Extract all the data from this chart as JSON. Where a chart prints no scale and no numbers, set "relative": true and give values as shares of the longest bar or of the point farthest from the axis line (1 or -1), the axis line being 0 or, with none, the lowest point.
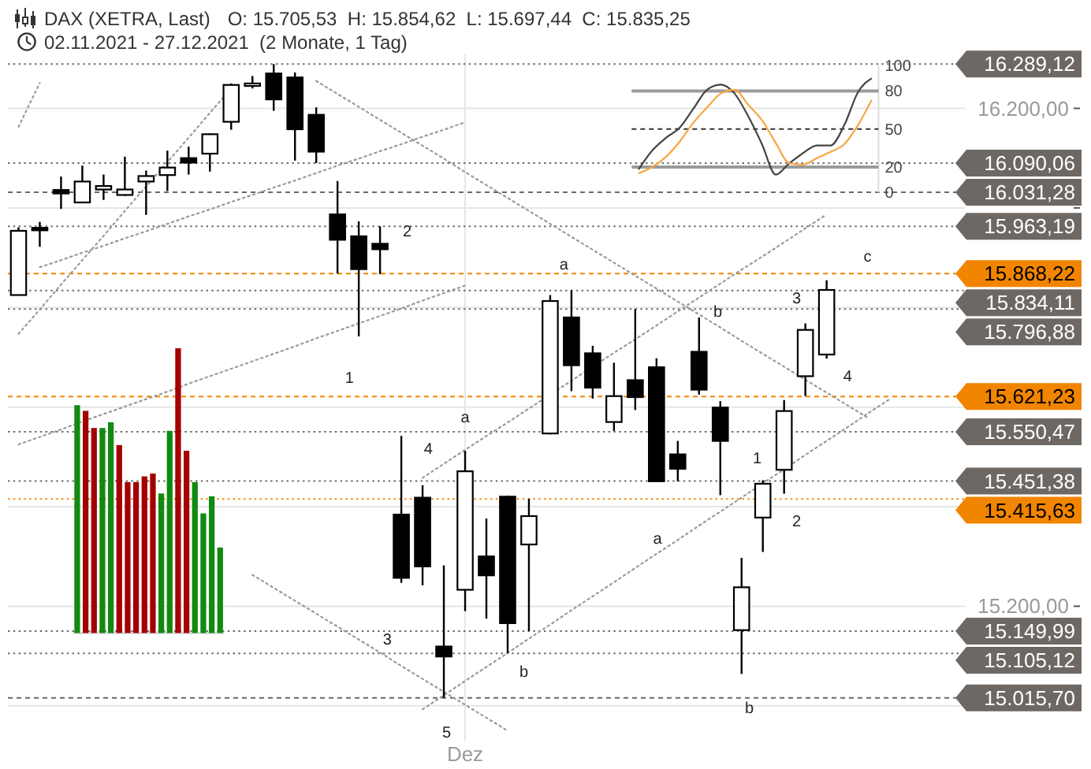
{
  "chart_data": [
    {
      "type": "candlestick",
      "title": "DAX (XETRA, Last)",
      "subtitle": "O: 15.705,53  H: 15.854,62  L: 15.697,44  C: 15.835,25",
      "annotations": [
        "02.11.2021 - 27.12.2021  (2 Monate, 1 Tag)",
        "1",
        "2",
        "3",
        "4",
        "5",
        "a",
        "b",
        "a",
        "b",
        "3",
        "c",
        "4",
        "1",
        "2",
        "a",
        "b"
      ],
      "categories": [
        null,
        null,
        null,
        null,
        null,
        null,
        null,
        null,
        null,
        null,
        null,
        null,
        null,
        null,
        null,
        null,
        null,
        null,
        null,
        null,
        null,
        "Dez",
        null,
        null,
        null,
        null,
        null,
        null,
        null,
        null,
        null,
        null,
        null,
        null,
        null,
        null,
        null,
        null,
        null,
        null,
        null,
        null,
        null,
        null,
        null
      ],
      "ohlc": [
        [
          15825,
          15961,
          15825,
          15954
        ],
        [
          15960,
          15972,
          15922,
          15955
        ],
        [
          16036,
          16063,
          15998,
          16029
        ],
        [
          16011,
          16085,
          16011,
          16053
        ],
        [
          16037,
          16067,
          16016,
          16044
        ],
        [
          16026,
          16103,
          16024,
          16037
        ],
        [
          16053,
          16075,
          15986,
          16064
        ],
        [
          16066,
          16115,
          16034,
          16081
        ],
        [
          16100,
          16123,
          16067,
          16091
        ],
        [
          16109,
          16150,
          16073,
          16148
        ],
        [
          16173,
          16250,
          16157,
          16247
        ],
        [
          16245,
          16265,
          16240,
          16250
        ],
        [
          16270,
          16289,
          16195,
          16218
        ],
        [
          16262,
          16272,
          16095,
          16158
        ],
        [
          16187,
          16202,
          16090,
          16113
        ],
        [
          15987,
          16054,
          15868,
          15936
        ],
        [
          15943,
          15973,
          15742,
          15877
        ],
        [
          15928,
          15963,
          15867,
          15917
        ],
        [
          15384,
          15542,
          15247,
          15257
        ],
        [
          15418,
          15443,
          15242,
          15280
        ],
        [
          15119,
          15282,
          15016,
          15099
        ],
        [
          15233,
          15512,
          15190,
          15471
        ],
        [
          15300,
          15376,
          15175,
          15262
        ],
        [
          15420,
          15422,
          15106,
          15166
        ],
        [
          15324,
          15416,
          15150,
          15381
        ],
        [
          15547,
          15825,
          15545,
          15813
        ],
        [
          15780,
          15835,
          15632,
          15684
        ],
        [
          15708,
          15723,
          15617,
          15639
        ],
        [
          15570,
          15689,
          15552,
          15622
        ],
        [
          15654,
          15797,
          15594,
          15620
        ],
        [
          15680,
          15698,
          15451,
          15451
        ],
        [
          15505,
          15532,
          15451,
          15476
        ],
        [
          15711,
          15780,
          15625,
          15635
        ],
        [
          15599,
          15612,
          15423,
          15532
        ],
        [
          15152,
          15297,
          15064,
          15238
        ],
        [
          15378,
          15453,
          15309,
          15446
        ],
        [
          15474,
          15614,
          15426,
          15592
        ],
        [
          15662,
          15768,
          15622,
          15755
        ],
        [
          15705.53,
          15854.62,
          15697.44,
          15835.25
        ],
        null,
        null,
        null,
        null,
        null,
        null
      ],
      "series": [
        {
          "type": "line",
          "color": "#9a9a9a",
          "line_style": "dotted",
          "values": [
            16163,
            16251,
            null,
            null,
            null,
            null,
            null,
            null,
            null,
            null,
            null,
            null,
            null,
            null,
            null,
            null,
            null,
            null,
            null,
            null,
            null,
            null,
            null,
            null,
            null,
            null,
            null,
            null,
            null,
            null,
            null,
            null,
            null,
            null,
            null,
            null,
            null,
            null,
            null,
            null,
            null,
            null,
            null,
            null,
            null
          ]
        },
        {
          "type": "line",
          "color": "#9a9a9a",
          "line_style": "dotted",
          "values": [
            15747,
            15796,
            15846,
            15895,
            15944,
            15994,
            16043,
            16092,
            16141,
            16191,
            16240,
            null,
            null,
            null,
            null,
            null,
            null,
            null,
            null,
            null,
            null,
            null,
            null,
            null,
            null,
            null,
            null,
            null,
            null,
            null,
            null,
            null,
            null,
            null,
            null,
            null,
            null,
            null,
            null,
            null,
            null,
            null,
            null,
            null,
            null
          ]
        },
        {
          "type": "line",
          "color": "#9a9a9a",
          "line_style": "dotted",
          "values": [
            null,
            15881,
            15895,
            15910,
            15924,
            15939,
            15953,
            15968,
            15983,
            15997,
            16012,
            16026,
            16041,
            16055,
            16070,
            16085,
            16099,
            16114,
            16128,
            16143,
            16157,
            16172,
            null,
            null,
            null,
            null,
            null,
            null,
            null,
            null,
            null,
            null,
            null,
            null,
            null,
            null,
            null,
            null,
            null,
            null,
            null,
            null,
            null,
            null,
            null
          ]
        },
        {
          "type": "line",
          "color": "#9a9a9a",
          "line_style": "dotted",
          "values": [
            15525,
            15540,
            15555,
            15571,
            15586,
            15601,
            15616,
            15631,
            15647,
            15662,
            15677,
            15692,
            15707,
            15722,
            15738,
            15753,
            15768,
            15783,
            15798,
            15814,
            15829,
            15844,
            null,
            null,
            null,
            null,
            null,
            null,
            null,
            null,
            null,
            null,
            null,
            null,
            null,
            null,
            null,
            null,
            null,
            null,
            null,
            null,
            null,
            null,
            null
          ]
        },
        {
          "type": "line",
          "color": "#9a9a9a",
          "line_style": "dotted",
          "values": [
            null,
            null,
            null,
            null,
            null,
            null,
            null,
            null,
            null,
            null,
            null,
            null,
            null,
            null,
            16255,
            16229,
            16203,
            16177,
            16151,
            16125,
            16099,
            16072,
            16046,
            16020,
            15994,
            15968,
            15942,
            15916,
            15890,
            15864,
            15838,
            15812,
            15786,
            15760,
            15733,
            15707,
            15681,
            15655,
            15629,
            15603,
            15577,
            null,
            null,
            null,
            null
          ]
        },
        {
          "type": "line",
          "color": "#9a9a9a",
          "line_style": "dotted",
          "values": [
            null,
            null,
            null,
            null,
            null,
            null,
            null,
            null,
            null,
            null,
            null,
            15263,
            15237,
            15211,
            15185,
            15159,
            15133,
            15107,
            15080,
            15054,
            15028,
            15002,
            14976,
            14950,
            null,
            null,
            null,
            null,
            null,
            null,
            null,
            null,
            null,
            null,
            null,
            null,
            null,
            null,
            null,
            null,
            null,
            null,
            null,
            null,
            null
          ]
        },
        {
          "type": "line",
          "color": "#9a9a9a",
          "line_style": "dotted",
          "values": [
            null,
            null,
            null,
            null,
            null,
            null,
            null,
            null,
            null,
            null,
            null,
            null,
            null,
            null,
            null,
            null,
            null,
            null,
            null,
            15458,
            15486,
            15514,
            15542,
            15569,
            15597,
            15625,
            15653,
            15681,
            15709,
            15736,
            15764,
            15792,
            15820,
            15848,
            15876,
            15903,
            15931,
            15959,
            15987,
            null,
            null,
            null,
            null,
            null,
            null
          ]
        },
        {
          "type": "line",
          "color": "#9a9a9a",
          "line_style": "dotted",
          "values": [
            null,
            null,
            null,
            null,
            null,
            null,
            null,
            null,
            null,
            null,
            null,
            null,
            null,
            null,
            null,
            null,
            null,
            null,
            null,
            14993,
            15021,
            15050,
            15078,
            15106,
            15135,
            15163,
            15192,
            15220,
            15248,
            15277,
            15305,
            15333,
            15362,
            15390,
            15418,
            15447,
            15475,
            15504,
            15532,
            15560,
            15589,
            15617,
            null,
            null,
            null
          ]
        }
      ],
      "ylim": [
        14930,
        16310
      ],
      "yticks": [
        {
          "value": 15000,
          "label": null
        },
        {
          "value": 15200,
          "label": "15.200,00"
        },
        {
          "value": 15400,
          "label": null
        },
        {
          "value": 15600,
          "label": null
        },
        {
          "value": 15800,
          "label": null
        },
        {
          "value": 16000,
          "label": null
        },
        {
          "value": 16200,
          "label": "16.200,00"
        }
      ],
      "grid": true,
      "ref_lines": [
        {
          "axis": "y",
          "value": 16289.12,
          "label": "16.289,12",
          "color": "#6e6864",
          "line_style": "dotted"
        },
        {
          "axis": "y",
          "value": 16090.06,
          "label": "16.090,06",
          "color": "#6e6864",
          "line_style": "dotted"
        },
        {
          "axis": "y",
          "value": 16031.28,
          "label": "16.031,28",
          "color": "#6e6864",
          "line_style": "dashed"
        },
        {
          "axis": "y",
          "value": 15963.19,
          "label": "15.963,19",
          "color": "#6e6864",
          "line_style": "dotted"
        },
        {
          "axis": "y",
          "value": 15868.22,
          "label": "15.868,22",
          "color": "#f28500",
          "line_style": "dashed"
        },
        {
          "axis": "y",
          "value": 15834.11,
          "label": "15.834,11",
          "color": "#6e6864",
          "line_style": "dotted"
        },
        {
          "axis": "y",
          "value": 15796.88,
          "label": "15.796,88",
          "color": "#6e6864",
          "line_style": "dotted"
        },
        {
          "axis": "y",
          "value": 15621.23,
          "label": "15.621,23",
          "color": "#f28500",
          "line_style": "dashed"
        },
        {
          "axis": "y",
          "value": 15550.47,
          "label": "15.550,47",
          "color": "#6e6864",
          "line_style": "dotted"
        },
        {
          "axis": "y",
          "value": 15451.38,
          "label": "15.451,38",
          "color": "#6e6864",
          "line_style": "dotted"
        },
        {
          "axis": "y",
          "value": 15415.63,
          "label": "15.415,63",
          "color": "#f28500",
          "line_style": "dotted"
        },
        {
          "axis": "y",
          "value": 15149.99,
          "label": "15.149,99",
          "color": "#6e6864",
          "line_style": "dotted"
        },
        {
          "axis": "y",
          "value": 15105.12,
          "label": "15.105,12",
          "color": "#6e6864",
          "line_style": "dotted"
        },
        {
          "axis": "y",
          "value": 15015.7,
          "label": "15.015,70",
          "color": "#6e6864",
          "line_style": "dashed"
        }
      ]
    },
    {
      "type": "line",
      "categories": [
        null,
        null,
        null,
        null,
        null,
        null,
        null,
        null,
        null,
        null,
        null,
        null,
        null,
        null,
        null,
        null,
        null,
        null
      ],
      "series": [
        {
          "color": "#444444",
          "values": [
            18,
            33,
            43,
            51,
            66,
            81,
            85,
            78,
            60,
            38,
            14,
            23,
            31,
            37,
            37,
            53,
            79,
            90
          ]
        },
        {
          "color": "#f5a742",
          "values": [
            15,
            20,
            28,
            40,
            55,
            67,
            78,
            81,
            69,
            57,
            39,
            23,
            22,
            27,
            32,
            38,
            53,
            73
          ]
        }
      ],
      "ylim": [
        0,
        100
      ],
      "yticks": [
        0,
        20,
        50,
        80,
        100
      ],
      "ref_lines": [
        {
          "axis": "y",
          "value": 80,
          "color": "#9b9b9b",
          "line_style": "solid"
        },
        {
          "axis": "y",
          "value": 50,
          "color": "#333333",
          "line_style": "dashed"
        },
        {
          "axis": "y",
          "value": 20,
          "color": "#9b9b9b",
          "line_style": "solid"
        }
      ]
    },
    {
      "type": "bar",
      "relative": true,
      "categories": [
        null,
        null,
        null,
        null,
        null,
        null,
        null,
        null,
        null,
        null,
        null,
        null,
        null,
        null,
        null,
        null,
        null,
        null
      ],
      "values": [
        0.8,
        0.78,
        0.72,
        0.72,
        0.74,
        0.66,
        0.53,
        0.53,
        0.55,
        0.56,
        0.49,
        0.71,
        1,
        0.64,
        0.53,
        0.42,
        0.48,
        0.3
      ],
      "colors": [
        "#108a10",
        "#a30000",
        "#a30000",
        "#108a10",
        "#108a10",
        "#a30000",
        "#a30000",
        "#a30000",
        "#a30000",
        "#a30000",
        "#108a10",
        "#108a10",
        "#a30000",
        "#a30000",
        "#108a10",
        "#108a10",
        "#108a10",
        "#108a10"
      ]
    }
  ]
}
